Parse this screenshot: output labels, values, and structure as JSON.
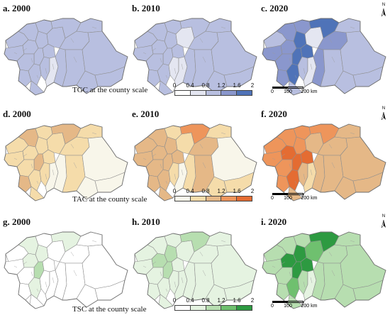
{
  "rows": [
    {
      "palette": [
        "#ffffff",
        "#e4e6f1",
        "#b8bfe0",
        "#8a97cd",
        "#4f73b8"
      ],
      "caption": "TGC at the county scale",
      "panels": [
        {
          "label": "a. 2000",
          "year": "2000"
        },
        {
          "label": "b. 2010",
          "year": "2010"
        },
        {
          "label": "c. 2020",
          "year": "2020"
        }
      ],
      "legend": {
        "ticks": [
          "0",
          "0.4",
          "0.8",
          "1.2",
          "1.6",
          "2"
        ]
      }
    },
    {
      "palette": [
        "#f8f6ea",
        "#f5dcaa",
        "#e5b887",
        "#ee955b",
        "#e46c32"
      ],
      "caption": "TAC at the county scale",
      "panels": [
        {
          "label": "d. 2000",
          "year": "2000"
        },
        {
          "label": "e. 2010",
          "year": "2010"
        },
        {
          "label": "f. 2020",
          "year": "2020"
        }
      ],
      "legend": {
        "ticks": [
          "0",
          "0.4",
          "0.8",
          "1.2",
          "1.6",
          "2"
        ]
      }
    },
    {
      "palette": [
        "#ffffff",
        "#e5f3e1",
        "#b7deb0",
        "#6fc06f",
        "#2d9a41"
      ],
      "caption": "TSC at the county scale",
      "panels": [
        {
          "label": "g. 2000",
          "year": "2000"
        },
        {
          "label": "h. 2010",
          "year": "2010"
        },
        {
          "label": "i. 2020",
          "year": "2020"
        }
      ],
      "legend": {
        "ticks": [
          "0",
          "0.4",
          "0.8",
          "1.2",
          "1.6",
          "2"
        ]
      }
    }
  ],
  "scale_bar": {
    "labels": [
      "0",
      "100",
      "200 km"
    ]
  },
  "north_arrow": {
    "label": "N"
  },
  "map_classes": {
    "row0": {
      "2000": [
        2,
        2,
        2,
        2,
        2,
        2,
        2,
        2,
        2,
        2,
        2,
        2,
        2,
        1,
        2,
        2,
        2,
        2,
        2,
        2,
        2,
        2,
        2
      ],
      "2010": [
        2,
        2,
        2,
        2,
        2,
        2,
        2,
        2,
        2,
        2,
        2,
        1,
        2,
        1,
        2,
        1,
        2,
        2,
        2,
        2,
        2,
        2,
        2
      ],
      "2020": [
        2,
        3,
        3,
        3,
        3,
        4,
        4,
        3,
        3,
        4,
        2,
        2,
        4,
        1,
        3,
        1,
        4,
        2,
        3,
        2,
        2,
        2,
        2
      ]
    },
    "row1": {
      "2000": [
        1,
        1,
        1,
        2,
        1,
        1,
        2,
        1,
        2,
        1,
        1,
        1,
        1,
        0,
        0,
        1,
        2,
        1,
        1,
        1,
        0,
        0,
        0
      ],
      "2010": [
        2,
        2,
        2,
        2,
        1,
        2,
        2,
        2,
        2,
        2,
        2,
        1,
        2,
        0,
        1,
        1,
        3,
        1,
        2,
        2,
        0,
        1,
        1
      ],
      "2020": [
        3,
        3,
        4,
        3,
        3,
        3,
        4,
        3,
        3,
        4,
        2,
        2,
        4,
        1,
        2,
        2,
        3,
        2,
        2,
        2,
        2,
        2,
        2
      ]
    },
    "row2": {
      "2000": [
        0,
        0,
        1,
        1,
        0,
        1,
        2,
        0,
        0,
        1,
        0,
        0,
        0,
        0,
        0,
        0,
        1,
        0,
        0,
        0,
        0,
        0,
        0
      ],
      "2010": [
        1,
        1,
        2,
        1,
        1,
        2,
        2,
        1,
        1,
        1,
        1,
        1,
        1,
        1,
        1,
        1,
        2,
        1,
        1,
        1,
        1,
        1,
        1
      ],
      "2020": [
        2,
        2,
        4,
        2,
        2,
        4,
        4,
        2,
        2,
        3,
        2,
        2,
        4,
        1,
        2,
        3,
        4,
        2,
        2,
        2,
        2,
        2,
        2
      ]
    }
  }
}
